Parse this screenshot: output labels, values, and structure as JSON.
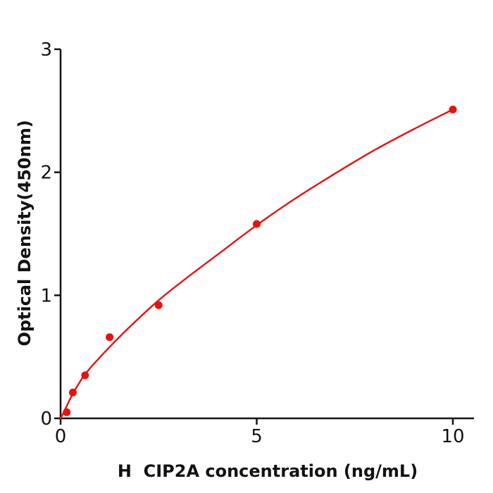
{
  "figure": {
    "background": "#ffffff",
    "axis_color": "#121212",
    "accent_red": "#e8120f"
  },
  "chart_data": {
    "type": "scatter",
    "title": "",
    "xlabel": "H  CIP2A concentration (ng/mL)",
    "ylabel": "Optical Density(450nm)",
    "xlim": [
      0,
      10.54
    ],
    "ylim": [
      0,
      3
    ],
    "x_ticks": [
      0,
      5,
      10
    ],
    "y_ticks": [
      0,
      1,
      2,
      3
    ],
    "grid": false,
    "legend_position": "none",
    "series": [
      {
        "name": "standard-points",
        "kind": "scatter",
        "color": "#e8120f",
        "x": [
          0.156,
          0.3125,
          0.625,
          1.25,
          2.5,
          5,
          10
        ],
        "y": [
          0.05,
          0.21,
          0.35,
          0.66,
          0.92,
          1.58,
          2.51
        ]
      },
      {
        "name": "fitted-curve",
        "kind": "line",
        "color": "#e8120f",
        "x": [
          0,
          0.05,
          0.156,
          0.3125,
          0.5,
          0.625,
          0.9,
          1.25,
          1.75,
          2.5,
          3.25,
          4,
          5,
          6,
          7,
          8,
          9,
          10
        ],
        "y": [
          0,
          0.03,
          0.1,
          0.2,
          0.3,
          0.36,
          0.46,
          0.58,
          0.74,
          0.96,
          1.15,
          1.33,
          1.57,
          1.79,
          1.99,
          2.18,
          2.35,
          2.51
        ]
      }
    ]
  }
}
